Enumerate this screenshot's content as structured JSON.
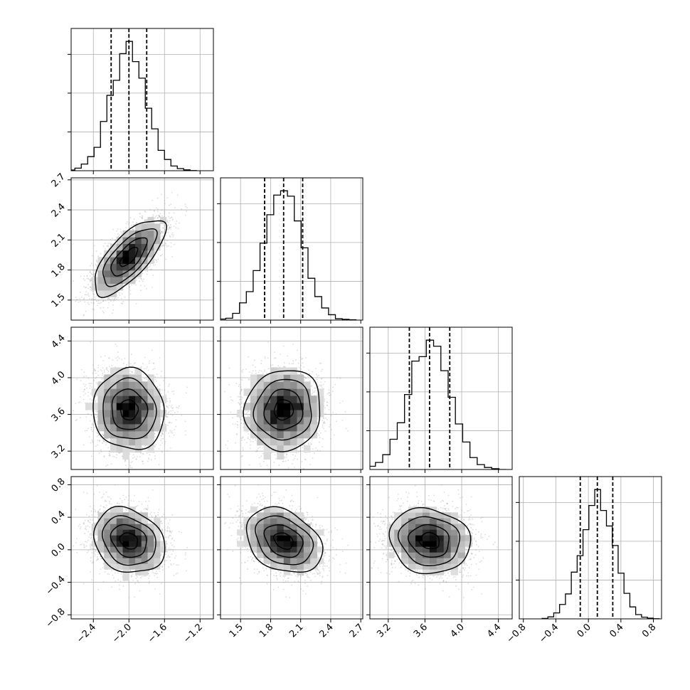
{
  "chart_data": {
    "type": "corner",
    "params": [
      {
        "mean": -2.0,
        "sd": 0.2,
        "q16": -2.2,
        "q50": -2.0,
        "q84": -1.8,
        "lim": [
          -2.65,
          -1.05
        ],
        "ticks": [
          -2.4,
          -2.0,
          -1.6,
          -1.2
        ],
        "tick_labels": [
          "−2.4",
          "−2.0",
          "−1.6",
          "−1.2"
        ]
      },
      {
        "mean": 1.93,
        "sd": 0.19,
        "q16": 1.74,
        "q50": 1.93,
        "q84": 2.12,
        "lim": [
          1.3,
          2.72
        ],
        "ticks": [
          1.5,
          1.8,
          2.1,
          2.4,
          2.7
        ],
        "tick_labels": [
          "1.5",
          "1.8",
          "2.1",
          "2.4",
          "2.7"
        ]
      },
      {
        "mean": 3.65,
        "sd": 0.22,
        "q16": 3.43,
        "q50": 3.65,
        "q84": 3.87,
        "lim": [
          3.0,
          4.55
        ],
        "ticks": [
          3.2,
          3.6,
          4.0,
          4.4
        ],
        "tick_labels": [
          "3.2",
          "3.6",
          "4.0",
          "4.4"
        ]
      },
      {
        "mean": 0.11,
        "sd": 0.2,
        "q16": -0.1,
        "q50": 0.11,
        "q84": 0.3,
        "lim": [
          -0.85,
          0.9
        ],
        "ticks": [
          -0.8,
          -0.4,
          0.0,
          0.4,
          0.8
        ],
        "tick_labels": [
          "−0.8",
          "−0.4",
          "0.0",
          "0.4",
          "0.8"
        ]
      }
    ],
    "correlations": [
      [
        1,
        0.72,
        -0.05,
        -0.2
      ],
      [
        0.72,
        1,
        0.05,
        -0.3
      ],
      [
        -0.05,
        0.05,
        1,
        -0.1
      ],
      [
        -0.2,
        -0.3,
        -0.1,
        1
      ]
    ],
    "histogram_bins": 20,
    "grid": true
  }
}
